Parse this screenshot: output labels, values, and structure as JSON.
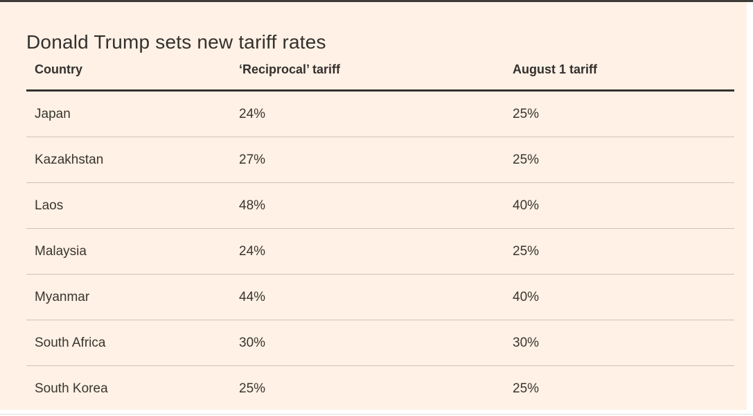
{
  "title": "Donald Trump sets new tariff rates",
  "table": {
    "columns": [
      "Country",
      "‘Reciprocal’ tariff",
      "August 1 tariff"
    ],
    "rows": [
      {
        "country": "Japan",
        "reciprocal": "24%",
        "august": "25%"
      },
      {
        "country": "Kazakhstan",
        "reciprocal": "27%",
        "august": "25%"
      },
      {
        "country": "Laos",
        "reciprocal": "48%",
        "august": "40%"
      },
      {
        "country": "Malaysia",
        "reciprocal": "24%",
        "august": "25%"
      },
      {
        "country": "Myanmar",
        "reciprocal": "44%",
        "august": "40%"
      },
      {
        "country": "South Africa",
        "reciprocal": "30%",
        "august": "30%"
      },
      {
        "country": "South Korea",
        "reciprocal": "25%",
        "august": "25%"
      }
    ]
  },
  "colors": {
    "card_background": "#FFF1E5",
    "text": "#33302E",
    "header_rule": "#33302E",
    "row_separator": "#CDC2B8",
    "top_border": "#3E3C39"
  },
  "chart_data": {
    "type": "table",
    "title": "Donald Trump sets new tariff rates",
    "columns": [
      "Country",
      "‘Reciprocal’ tariff",
      "August 1 tariff"
    ],
    "rows": [
      [
        "Japan",
        "24%",
        "25%"
      ],
      [
        "Kazakhstan",
        "27%",
        "25%"
      ],
      [
        "Laos",
        "48%",
        "40%"
      ],
      [
        "Malaysia",
        "24%",
        "25%"
      ],
      [
        "Myanmar",
        "44%",
        "40%"
      ],
      [
        "South Africa",
        "30%",
        "30%"
      ],
      [
        "South Korea",
        "25%",
        "25%"
      ]
    ],
    "reciprocal_values_pct": [
      24,
      27,
      48,
      24,
      44,
      30,
      25
    ],
    "august1_values_pct": [
      25,
      25,
      40,
      25,
      40,
      30,
      25
    ]
  }
}
